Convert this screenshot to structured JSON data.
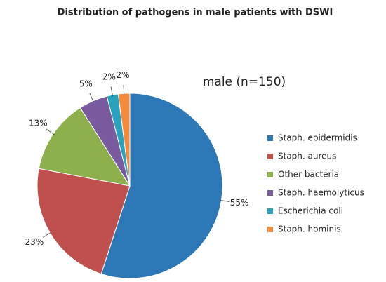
{
  "chart_data": {
    "type": "pie",
    "title": "Distribution of pathogens in male patients with DSWI",
    "subtitle": "male (n=150)",
    "categories": [
      "Staph. epidermidis",
      "Staph. aureus",
      "Other bacteria",
      "Staph. haemolyticus",
      "Escherichia coli",
      "Staph. hominis"
    ],
    "values": [
      55,
      23,
      13,
      5,
      2,
      2
    ],
    "value_labels": [
      "55%",
      "23%",
      "13%",
      "5%",
      "2%",
      "2%"
    ],
    "colors": [
      "#2c78b6",
      "#c0504d",
      "#8db04c",
      "#7b5b9f",
      "#2aa3bf",
      "#f58a3a"
    ],
    "legend": "right"
  }
}
